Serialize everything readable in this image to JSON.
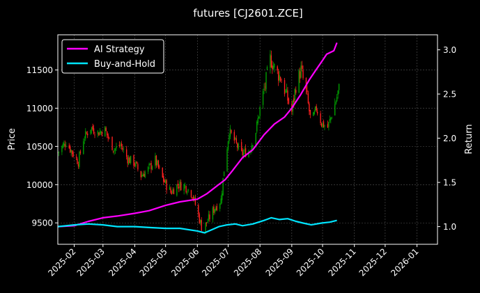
{
  "chart_data": {
    "type": "candlestick+line",
    "title": "futures [CJ2601.ZCE]",
    "xlabel": "",
    "ylabel_left": "Price",
    "ylabel_right": "Return",
    "x_ticks": [
      "2025-02",
      "2025-03",
      "2025-04",
      "2025-05",
      "2025-06",
      "2025-07",
      "2025-08",
      "2025-09",
      "2025-10",
      "2025-11",
      "2025-12",
      "2026-01"
    ],
    "xlim": [
      "2025-01-16",
      "2026-01-21"
    ],
    "y_left_ticks": [
      9500,
      10000,
      10500,
      11000,
      11500
    ],
    "y_left_lim": [
      9220,
      11960
    ],
    "y_right_ticks": [
      1.0,
      1.5,
      2.0,
      2.5,
      3.0
    ],
    "y_right_lim": [
      0.8,
      3.17
    ],
    "grid": true,
    "legend_position": "top-left",
    "colors": {
      "background": "#000000",
      "up_candle": "#00a000",
      "down_candle": "#ff2020",
      "ai_strategy": "#ff00ff",
      "buy_and_hold": "#00e5ff",
      "grid": "#555555",
      "axes": "#ffffff"
    },
    "price_path": [
      [
        "2025-01-16",
        10420
      ],
      [
        "2025-01-24",
        10560
      ],
      [
        "2025-02-01",
        10380
      ],
      [
        "2025-02-05",
        10300
      ],
      [
        "2025-02-10",
        10600
      ],
      [
        "2025-02-17",
        10750
      ],
      [
        "2025-02-24",
        10680
      ],
      [
        "2025-03-03",
        10720
      ],
      [
        "2025-03-07",
        10580
      ],
      [
        "2025-03-12",
        10460
      ],
      [
        "2025-03-18",
        10520
      ],
      [
        "2025-03-25",
        10340
      ],
      [
        "2025-04-01",
        10280
      ],
      [
        "2025-04-07",
        10120
      ],
      [
        "2025-04-14",
        10200
      ],
      [
        "2025-04-21",
        10320
      ],
      [
        "2025-04-28",
        10080
      ],
      [
        "2025-05-06",
        9900
      ],
      [
        "2025-05-13",
        10000
      ],
      [
        "2025-05-20",
        9980
      ],
      [
        "2025-05-27",
        9880
      ],
      [
        "2025-06-02",
        9600
      ],
      [
        "2025-06-06",
        9400
      ],
      [
        "2025-06-12",
        9550
      ],
      [
        "2025-06-18",
        9700
      ],
      [
        "2025-06-24",
        9800
      ],
      [
        "2025-06-27",
        10200
      ],
      [
        "2025-07-02",
        10700
      ],
      [
        "2025-07-08",
        10550
      ],
      [
        "2025-07-14",
        10400
      ],
      [
        "2025-07-22",
        10450
      ],
      [
        "2025-07-28",
        10700
      ],
      [
        "2025-08-01",
        11000
      ],
      [
        "2025-08-06",
        11300
      ],
      [
        "2025-08-11",
        11650
      ],
      [
        "2025-08-16",
        11500
      ],
      [
        "2025-08-21",
        11400
      ],
      [
        "2025-08-26",
        11200
      ],
      [
        "2025-09-01",
        10950
      ],
      [
        "2025-09-05",
        11300
      ],
      [
        "2025-09-10",
        11500
      ],
      [
        "2025-09-15",
        11200
      ],
      [
        "2025-09-20",
        10800
      ],
      [
        "2025-09-25",
        11000
      ],
      [
        "2025-09-30",
        10800
      ],
      [
        "2025-10-06",
        10750
      ],
      [
        "2025-10-12",
        11000
      ],
      [
        "2025-10-17",
        11250
      ]
    ],
    "series": [
      {
        "name": "AI Strategy",
        "axis": "right",
        "points": [
          [
            "2025-01-16",
            1.0
          ],
          [
            "2025-02-01",
            1.01
          ],
          [
            "2025-02-15",
            1.06
          ],
          [
            "2025-03-01",
            1.1
          ],
          [
            "2025-03-15",
            1.12
          ],
          [
            "2025-04-01",
            1.15
          ],
          [
            "2025-04-15",
            1.18
          ],
          [
            "2025-05-01",
            1.24
          ],
          [
            "2025-05-15",
            1.28
          ],
          [
            "2025-06-01",
            1.31
          ],
          [
            "2025-06-10",
            1.37
          ],
          [
            "2025-06-20",
            1.46
          ],
          [
            "2025-06-28",
            1.53
          ],
          [
            "2025-07-05",
            1.63
          ],
          [
            "2025-07-15",
            1.78
          ],
          [
            "2025-07-25",
            1.87
          ],
          [
            "2025-08-05",
            2.04
          ],
          [
            "2025-08-15",
            2.16
          ],
          [
            "2025-08-25",
            2.24
          ],
          [
            "2025-09-01",
            2.34
          ],
          [
            "2025-09-10",
            2.5
          ],
          [
            "2025-09-18",
            2.66
          ],
          [
            "2025-09-25",
            2.78
          ],
          [
            "2025-10-01",
            2.88
          ],
          [
            "2025-10-05",
            2.95
          ],
          [
            "2025-10-12",
            2.99
          ],
          [
            "2025-10-15",
            3.08
          ]
        ]
      },
      {
        "name": "Buy-and-Hold",
        "axis": "right",
        "points": [
          [
            "2025-01-16",
            1.0
          ],
          [
            "2025-02-01",
            1.02
          ],
          [
            "2025-02-15",
            1.03
          ],
          [
            "2025-03-01",
            1.02
          ],
          [
            "2025-03-15",
            1.0
          ],
          [
            "2025-04-01",
            1.0
          ],
          [
            "2025-04-15",
            0.99
          ],
          [
            "2025-05-01",
            0.98
          ],
          [
            "2025-05-15",
            0.98
          ],
          [
            "2025-06-01",
            0.95
          ],
          [
            "2025-06-08",
            0.93
          ],
          [
            "2025-06-14",
            0.96
          ],
          [
            "2025-06-22",
            1.0
          ],
          [
            "2025-06-30",
            1.02
          ],
          [
            "2025-07-08",
            1.03
          ],
          [
            "2025-07-15",
            1.01
          ],
          [
            "2025-07-25",
            1.03
          ],
          [
            "2025-08-05",
            1.07
          ],
          [
            "2025-08-12",
            1.1
          ],
          [
            "2025-08-20",
            1.08
          ],
          [
            "2025-08-28",
            1.09
          ],
          [
            "2025-09-05",
            1.06
          ],
          [
            "2025-09-12",
            1.04
          ],
          [
            "2025-09-20",
            1.02
          ],
          [
            "2025-09-30",
            1.04
          ],
          [
            "2025-10-08",
            1.05
          ],
          [
            "2025-10-15",
            1.07
          ]
        ]
      }
    ]
  }
}
